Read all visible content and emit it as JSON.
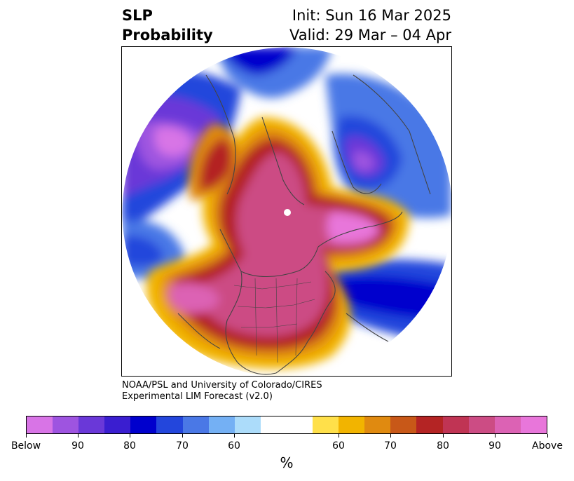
{
  "title": {
    "left_line1": "SLP",
    "left_line2": "Probability",
    "right_line1": "Init: Sun 16 Mar 2025",
    "right_line2": "Valid: 29 Mar – 04 Apr"
  },
  "credit": {
    "line1": "NOAA/PSL and University of Colorado/CIRES",
    "line2": "Experimental LIM Forecast (v2.0)"
  },
  "colorbar": {
    "unit": "%",
    "colors": [
      "#d874e6",
      "#9e54e0",
      "#6a38d8",
      "#3a1ed0",
      "#0000cd",
      "#2346dc",
      "#4a78e6",
      "#74b0f4",
      "#acdcfa",
      "#ffffff",
      "#ffe04a",
      "#f2b400",
      "#e08a10",
      "#c85818",
      "#b42424",
      "#c03454",
      "#cc4c84",
      "#dc62b4",
      "#e876da"
    ],
    "ticks": [
      {
        "label": "Below"
      },
      {
        "label": "90"
      },
      {
        "label": "80"
      },
      {
        "label": "70"
      },
      {
        "label": "60"
      },
      {
        "label": "60"
      },
      {
        "label": "70"
      },
      {
        "label": "80"
      },
      {
        "label": "90"
      },
      {
        "label": "Above"
      }
    ]
  },
  "map": {
    "projection": "north-polar-stereographic",
    "variable": "sea-level pressure probability",
    "features": [
      "above-normal-probability-over-north-america-and-arctic",
      "below-normal-probability-over-north-pacific-and-north-atlantic",
      "coastlines",
      "country-borders",
      "us-state-borders"
    ]
  }
}
